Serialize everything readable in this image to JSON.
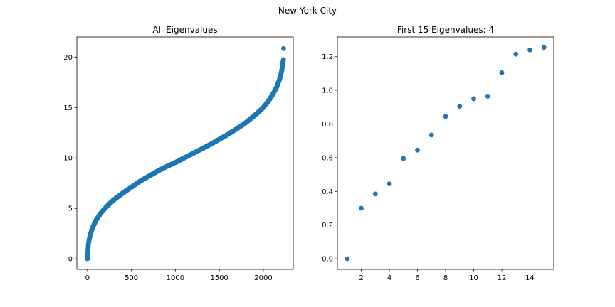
{
  "figure": {
    "suptitle": "New York City"
  },
  "chart_data": [
    {
      "type": "scatter",
      "title": "All Eigenvalues",
      "xlabel": "",
      "ylabel": "",
      "xlim": [
        -120,
        2340
      ],
      "ylim": [
        -1.05,
        22
      ],
      "x_ticks": [
        0,
        500,
        1000,
        1500,
        2000
      ],
      "y_ticks": [
        0,
        5,
        10,
        15,
        20
      ],
      "marker_color": "#1f77b4",
      "grid": false,
      "n_points": 2231,
      "series": [
        {
          "x": [
            0,
            2,
            5,
            10,
            20,
            30,
            50,
            75,
            100,
            150,
            200,
            250,
            300,
            400,
            500,
            600,
            700,
            800,
            900,
            1000,
            1100,
            1200,
            1300,
            1400,
            1500,
            1600,
            1700,
            1800,
            1900,
            2000,
            2050,
            2100,
            2150,
            2180,
            2200,
            2210,
            2215,
            2220,
            2225,
            2229,
            2230
          ],
          "y": [
            0.0,
            0.3,
            0.8,
            1.4,
            1.9,
            2.3,
            2.9,
            3.4,
            3.85,
            4.5,
            5.0,
            5.45,
            5.85,
            6.5,
            7.1,
            7.7,
            8.2,
            8.7,
            9.15,
            9.55,
            10.0,
            10.45,
            10.9,
            11.35,
            11.85,
            12.35,
            12.9,
            13.5,
            14.2,
            15.0,
            15.55,
            16.2,
            17.0,
            17.7,
            18.3,
            18.7,
            19.0,
            19.35,
            19.6,
            19.75,
            20.85
          ]
        }
      ]
    },
    {
      "type": "scatter",
      "title": "First 15 Eigenvalues: 4",
      "xlabel": "",
      "ylabel": "",
      "xlim": [
        0.3,
        15.7
      ],
      "ylim": [
        -0.063,
        1.317
      ],
      "x_ticks": [
        2,
        4,
        6,
        8,
        10,
        12,
        14
      ],
      "y_ticks": [
        0.0,
        0.2,
        0.4,
        0.6,
        0.8,
        1.0,
        1.2
      ],
      "marker_color": "#1f77b4",
      "grid": false,
      "series": [
        {
          "x": [
            1,
            2,
            3,
            4,
            5,
            6,
            7,
            8,
            9,
            10,
            11,
            12,
            13,
            14,
            15
          ],
          "y": [
            0.0,
            0.3,
            0.385,
            0.445,
            0.595,
            0.645,
            0.735,
            0.845,
            0.905,
            0.95,
            0.965,
            1.105,
            1.215,
            1.24,
            1.255
          ]
        }
      ]
    }
  ]
}
